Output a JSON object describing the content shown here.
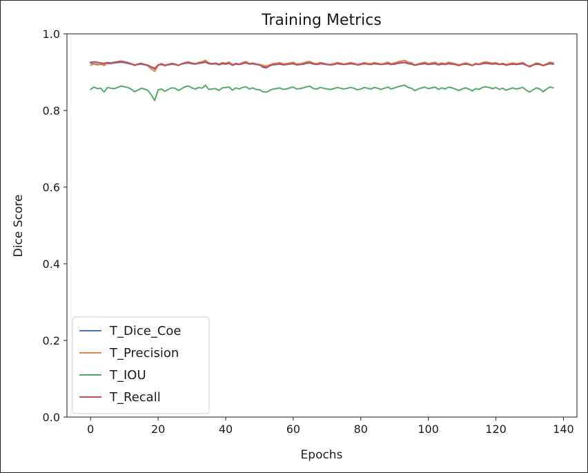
{
  "chart_data": {
    "type": "line",
    "title": "Training Metrics",
    "xlabel": "Epochs",
    "ylabel": "Dice Score",
    "xlim": [
      -7,
      144
    ],
    "ylim": [
      0.0,
      1.0
    ],
    "xticks": [
      0,
      20,
      40,
      60,
      80,
      100,
      120,
      140
    ],
    "yticks": [
      0.0,
      0.2,
      0.4,
      0.6,
      0.8,
      1.0
    ],
    "xtick_labels": [
      "0",
      "20",
      "40",
      "60",
      "80",
      "100",
      "120",
      "140"
    ],
    "ytick_labels": [
      "0.0",
      "0.2",
      "0.4",
      "0.6",
      "0.8",
      "1.0"
    ],
    "grid": false,
    "legend_position": "lower-left",
    "x": [
      0,
      1,
      2,
      3,
      4,
      5,
      6,
      7,
      8,
      9,
      10,
      11,
      12,
      13,
      14,
      15,
      16,
      17,
      18,
      19,
      20,
      21,
      22,
      23,
      24,
      25,
      26,
      27,
      28,
      29,
      30,
      31,
      32,
      33,
      34,
      35,
      36,
      37,
      38,
      39,
      40,
      41,
      42,
      43,
      44,
      45,
      46,
      47,
      48,
      49,
      50,
      51,
      52,
      53,
      54,
      55,
      56,
      57,
      58,
      59,
      60,
      61,
      62,
      63,
      64,
      65,
      66,
      67,
      68,
      69,
      70,
      71,
      72,
      73,
      74,
      75,
      76,
      77,
      78,
      79,
      80,
      81,
      82,
      83,
      84,
      85,
      86,
      87,
      88,
      89,
      90,
      91,
      92,
      93,
      94,
      95,
      96,
      97,
      98,
      99,
      100,
      101,
      102,
      103,
      104,
      105,
      106,
      107,
      108,
      109,
      110,
      111,
      112,
      113,
      114,
      115,
      116,
      117,
      118,
      119,
      120,
      121,
      122,
      123,
      124,
      125,
      126,
      127,
      128,
      129,
      130,
      131,
      132,
      133,
      134,
      135,
      136,
      137
    ],
    "series": [
      {
        "name": "T_Dice_Coe",
        "color": "#4c72b0",
        "values": [
          0.924,
          0.922,
          0.921,
          0.92,
          0.919,
          0.923,
          0.922,
          0.924,
          0.925,
          0.926,
          0.925,
          0.923,
          0.921,
          0.918,
          0.92,
          0.921,
          0.919,
          0.918,
          0.913,
          0.908,
          0.918,
          0.92,
          0.917,
          0.919,
          0.921,
          0.92,
          0.918,
          0.921,
          0.923,
          0.924,
          0.922,
          0.921,
          0.923,
          0.924,
          0.926,
          0.922,
          0.921,
          0.922,
          0.919,
          0.922,
          0.921,
          0.923,
          0.918,
          0.921,
          0.92,
          0.922,
          0.924,
          0.921,
          0.922,
          0.92,
          0.919,
          0.915,
          0.914,
          0.917,
          0.919,
          0.92,
          0.921,
          0.919,
          0.92,
          0.921,
          0.922,
          0.919,
          0.92,
          0.921,
          0.923,
          0.924,
          0.921,
          0.92,
          0.922,
          0.921,
          0.92,
          0.919,
          0.92,
          0.922,
          0.921,
          0.92,
          0.921,
          0.922,
          0.921,
          0.919,
          0.92,
          0.922,
          0.921,
          0.92,
          0.922,
          0.921,
          0.92,
          0.921,
          0.922,
          0.92,
          0.921,
          0.923,
          0.924,
          0.925,
          0.922,
          0.921,
          0.918,
          0.92,
          0.921,
          0.922,
          0.92,
          0.921,
          0.922,
          0.919,
          0.921,
          0.92,
          0.922,
          0.921,
          0.92,
          0.918,
          0.92,
          0.921,
          0.92,
          0.918,
          0.921,
          0.92,
          0.922,
          0.923,
          0.922,
          0.921,
          0.922,
          0.92,
          0.921,
          0.919,
          0.92,
          0.921,
          0.92,
          0.921,
          0.922,
          0.918,
          0.916,
          0.919,
          0.921,
          0.92,
          0.918,
          0.92,
          0.922,
          0.921
        ]
      },
      {
        "name": "T_Precision",
        "color": "#dd8452",
        "values": [
          0.918,
          0.921,
          0.919,
          0.922,
          0.917,
          0.925,
          0.923,
          0.926,
          0.927,
          0.929,
          0.927,
          0.925,
          0.922,
          0.917,
          0.921,
          0.923,
          0.92,
          0.916,
          0.908,
          0.902,
          0.917,
          0.922,
          0.916,
          0.92,
          0.923,
          0.921,
          0.917,
          0.922,
          0.925,
          0.927,
          0.924,
          0.922,
          0.925,
          0.927,
          0.931,
          0.924,
          0.922,
          0.924,
          0.92,
          0.925,
          0.923,
          0.926,
          0.919,
          0.923,
          0.921,
          0.925,
          0.928,
          0.922,
          0.924,
          0.921,
          0.92,
          0.918,
          0.916,
          0.919,
          0.922,
          0.923,
          0.925,
          0.921,
          0.922,
          0.924,
          0.926,
          0.921,
          0.922,
          0.924,
          0.927,
          0.928,
          0.923,
          0.922,
          0.925,
          0.923,
          0.921,
          0.92,
          0.922,
          0.925,
          0.923,
          0.921,
          0.923,
          0.925,
          0.923,
          0.92,
          0.922,
          0.925,
          0.923,
          0.922,
          0.925,
          0.923,
          0.921,
          0.923,
          0.926,
          0.922,
          0.924,
          0.927,
          0.929,
          0.931,
          0.926,
          0.924,
          0.919,
          0.922,
          0.924,
          0.926,
          0.922,
          0.924,
          0.926,
          0.921,
          0.924,
          0.922,
          0.926,
          0.924,
          0.922,
          0.919,
          0.922,
          0.924,
          0.922,
          0.918,
          0.923,
          0.921,
          0.925,
          0.927,
          0.925,
          0.923,
          0.925,
          0.921,
          0.923,
          0.92,
          0.922,
          0.924,
          0.922,
          0.923,
          0.925,
          0.919,
          0.915,
          0.92,
          0.924,
          0.922,
          0.918,
          0.922,
          0.926,
          0.924
        ]
      },
      {
        "name": "T_IOU",
        "color": "#55a868",
        "values": [
          0.855,
          0.861,
          0.857,
          0.858,
          0.848,
          0.86,
          0.858,
          0.857,
          0.86,
          0.864,
          0.862,
          0.86,
          0.856,
          0.849,
          0.853,
          0.858,
          0.856,
          0.852,
          0.84,
          0.826,
          0.854,
          0.856,
          0.85,
          0.855,
          0.859,
          0.858,
          0.852,
          0.857,
          0.862,
          0.864,
          0.859,
          0.856,
          0.86,
          0.858,
          0.866,
          0.855,
          0.856,
          0.857,
          0.852,
          0.859,
          0.86,
          0.861,
          0.853,
          0.859,
          0.856,
          0.86,
          0.862,
          0.856,
          0.859,
          0.855,
          0.854,
          0.849,
          0.848,
          0.852,
          0.856,
          0.857,
          0.859,
          0.855,
          0.856,
          0.859,
          0.861,
          0.856,
          0.857,
          0.859,
          0.862,
          0.863,
          0.857,
          0.856,
          0.86,
          0.858,
          0.856,
          0.855,
          0.857,
          0.86,
          0.858,
          0.856,
          0.858,
          0.86,
          0.858,
          0.854,
          0.856,
          0.86,
          0.858,
          0.856,
          0.86,
          0.858,
          0.855,
          0.858,
          0.861,
          0.856,
          0.859,
          0.862,
          0.864,
          0.866,
          0.86,
          0.858,
          0.852,
          0.856,
          0.859,
          0.861,
          0.857,
          0.859,
          0.861,
          0.855,
          0.859,
          0.856,
          0.861,
          0.859,
          0.856,
          0.852,
          0.856,
          0.859,
          0.856,
          0.851,
          0.857,
          0.855,
          0.86,
          0.862,
          0.86,
          0.857,
          0.86,
          0.855,
          0.858,
          0.853,
          0.856,
          0.859,
          0.856,
          0.858,
          0.86,
          0.853,
          0.848,
          0.854,
          0.859,
          0.856,
          0.849,
          0.856,
          0.861,
          0.859
        ]
      },
      {
        "name": "T_Recall",
        "color": "#c44e52",
        "values": [
          0.926,
          0.927,
          0.926,
          0.924,
          0.923,
          0.925,
          0.924,
          0.926,
          0.927,
          0.928,
          0.927,
          0.925,
          0.922,
          0.919,
          0.921,
          0.923,
          0.92,
          0.918,
          0.914,
          0.91,
          0.919,
          0.922,
          0.918,
          0.92,
          0.922,
          0.921,
          0.918,
          0.922,
          0.924,
          0.925,
          0.923,
          0.922,
          0.924,
          0.925,
          0.927,
          0.923,
          0.922,
          0.923,
          0.92,
          0.923,
          0.922,
          0.924,
          0.918,
          0.922,
          0.92,
          0.923,
          0.925,
          0.922,
          0.923,
          0.921,
          0.919,
          0.913,
          0.911,
          0.916,
          0.92,
          0.921,
          0.922,
          0.92,
          0.92,
          0.922,
          0.923,
          0.919,
          0.92,
          0.922,
          0.924,
          0.925,
          0.922,
          0.92,
          0.923,
          0.922,
          0.92,
          0.919,
          0.92,
          0.923,
          0.922,
          0.92,
          0.921,
          0.923,
          0.922,
          0.919,
          0.92,
          0.923,
          0.921,
          0.92,
          0.923,
          0.922,
          0.92,
          0.921,
          0.923,
          0.92,
          0.922,
          0.924,
          0.925,
          0.926,
          0.923,
          0.922,
          0.918,
          0.92,
          0.922,
          0.923,
          0.92,
          0.922,
          0.923,
          0.919,
          0.922,
          0.92,
          0.923,
          0.922,
          0.92,
          0.917,
          0.92,
          0.922,
          0.92,
          0.917,
          0.922,
          0.92,
          0.923,
          0.924,
          0.923,
          0.922,
          0.923,
          0.92,
          0.922,
          0.918,
          0.92,
          0.922,
          0.92,
          0.922,
          0.923,
          0.918,
          0.914,
          0.918,
          0.922,
          0.92,
          0.917,
          0.92,
          0.923,
          0.922
        ]
      }
    ]
  }
}
